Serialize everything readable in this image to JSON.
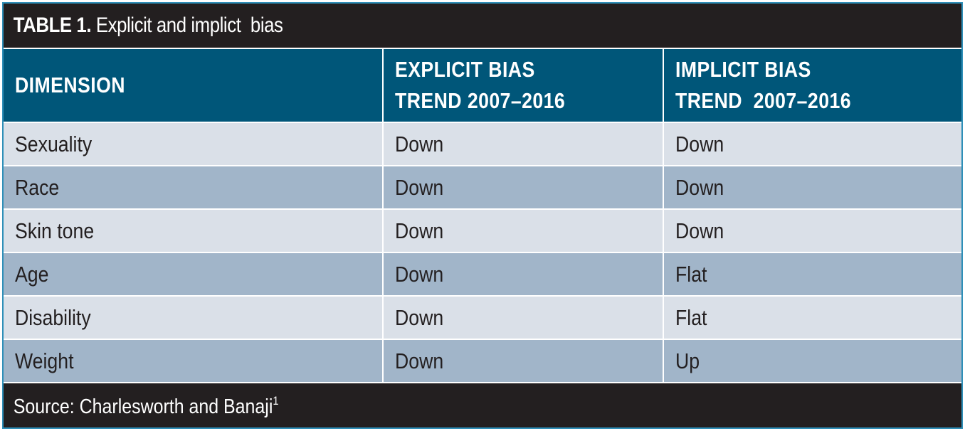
{
  "title": {
    "label": "TABLE 1.",
    "text": "Explicit and implict  bias"
  },
  "table": {
    "headers": [
      [
        "DIMENSION"
      ],
      [
        "EXPLICIT BIAS",
        "TREND 2007–2016"
      ],
      [
        "IMPLICIT BIAS",
        "TREND  2007–2016"
      ]
    ],
    "rows": [
      [
        "Sexuality",
        "Down",
        "Down"
      ],
      [
        "Race",
        "Down",
        "Down"
      ],
      [
        "Skin tone",
        "Down",
        "Down"
      ],
      [
        "Age",
        "Down",
        "Flat"
      ],
      [
        "Disability",
        "Down",
        "Flat"
      ],
      [
        "Weight",
        "Down",
        "Up"
      ]
    ]
  },
  "source": {
    "text": "Source: Charlesworth and Banaji",
    "footnote": "1"
  },
  "colors": {
    "frame_border": "#2f8fb8",
    "title_bg": "#231f20",
    "header_bg": "#005679",
    "row_light": "#dae0e8",
    "row_dark": "#a1b5c9"
  }
}
